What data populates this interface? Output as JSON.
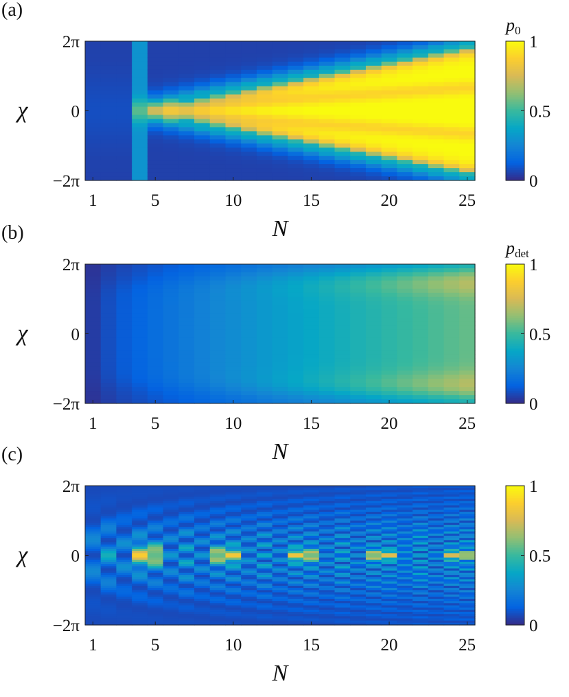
{
  "figure": {
    "colormap": "parula",
    "colormap_stops": [
      "#352a87",
      "#0363e1",
      "#1485d4",
      "#06a7c6",
      "#38b99e",
      "#92bf73",
      "#d9ba56",
      "#fcce2e",
      "#f9fb0e"
    ]
  },
  "chart_data": [
    {
      "type": "heatmap",
      "panel_label": "(a)",
      "variable": "p0",
      "colorbar_label": {
        "base": "p",
        "sub": "0"
      },
      "xlabel": "N",
      "ylabel": "χ",
      "x_ticks": [
        "1",
        "5",
        "10",
        "15",
        "20",
        "25"
      ],
      "x_tick_values": [
        1,
        5,
        10,
        15,
        20,
        25
      ],
      "y_ticks": [
        "2π",
        "0",
        "−2π"
      ],
      "y_tick_values": [
        6.2832,
        0,
        -6.2832
      ],
      "xlim": [
        0.5,
        25.5
      ],
      "ylim": [
        -6.2832,
        6.2832
      ],
      "colorbar_ticks": [
        "1",
        "0.5",
        "0"
      ],
      "colorbar_tick_values": [
        1,
        0.5,
        0
      ],
      "clim": [
        0,
        1
      ],
      "description_of_values": "p0 ≈ 0.05 for N ≤ 3, rising at χ = 0 near N = 4; a bright yellow (≈1) wedge opens from N ≈ 5 and widens with N, reaching about ±1.9π at N = 25, with faint orange bands inside"
    },
    {
      "type": "heatmap",
      "panel_label": "(b)",
      "variable": "p_det",
      "colorbar_label": {
        "base": "p",
        "sub": "det"
      },
      "xlabel": "N",
      "ylabel": "χ",
      "x_ticks": [
        "1",
        "5",
        "10",
        "15",
        "20",
        "25"
      ],
      "x_tick_values": [
        1,
        5,
        10,
        15,
        20,
        25
      ],
      "y_ticks": [
        "2π",
        "0",
        "−2π"
      ],
      "y_tick_values": [
        6.2832,
        0,
        -6.2832
      ],
      "xlim": [
        0.5,
        25.5
      ],
      "ylim": [
        -6.2832,
        6.2832
      ],
      "colorbar_ticks": [
        "1",
        "0.5",
        "0"
      ],
      "colorbar_tick_values": [
        1,
        0.5,
        0
      ],
      "clim": [
        0,
        1
      ],
      "description_of_values": "p_det grows smoothly with N from ≈0.05 at N = 1 to ≈0.55 at N = 25 (χ = 0), reaching ≈0.7 near χ = ±1.5π at N = 25"
    },
    {
      "type": "heatmap",
      "panel_label": "(c)",
      "variable": "",
      "colorbar_label": {
        "base": "",
        "sub": ""
      },
      "xlabel": "N",
      "ylabel": "χ",
      "x_ticks": [
        "1",
        "5",
        "10",
        "15",
        "20",
        "25"
      ],
      "x_tick_values": [
        1,
        5,
        10,
        15,
        20,
        25
      ],
      "y_ticks": [
        "2π",
        "0",
        "−2π"
      ],
      "y_tick_values": [
        6.2832,
        0,
        -6.2832
      ],
      "xlim": [
        0.5,
        25.5
      ],
      "ylim": [
        -6.2832,
        6.2832
      ],
      "colorbar_ticks": [
        "1",
        "0.5",
        "0"
      ],
      "colorbar_tick_values": [
        1,
        0.5,
        0
      ],
      "clim": [
        0,
        1
      ],
      "description_of_values": "oscillating interference pattern: bright (≈1) spot at χ = 0 for N = 2, repeating roughly every 4 in N and narrowing with N, with stripes whose frequency in χ increases with N"
    }
  ]
}
